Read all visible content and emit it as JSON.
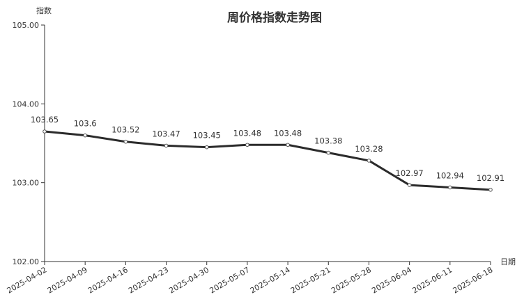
{
  "chart_data": {
    "type": "line",
    "title": "周价格指数走势图",
    "ylabel": "指数",
    "xlabel": "日期",
    "ylim": [
      102.0,
      105.0
    ],
    "yticks": [
      "102.00",
      "103.00",
      "104.00",
      "105.00"
    ],
    "grid": false,
    "categories": [
      "2025-04-02",
      "2025-04-09",
      "2025-04-16",
      "2025-04-23",
      "2025-04-30",
      "2025-05-07",
      "2025-05-14",
      "2025-05-21",
      "2025-05-28",
      "2025-06-04",
      "2025-06-11",
      "2025-06-18"
    ],
    "values": [
      103.65,
      103.6,
      103.52,
      103.47,
      103.45,
      103.48,
      103.48,
      103.38,
      103.28,
      102.97,
      102.94,
      102.91
    ],
    "value_labels": [
      "103.65",
      "103.6",
      "103.52",
      "103.47",
      "103.45",
      "103.48",
      "103.48",
      "103.38",
      "103.28",
      "102.97",
      "102.94",
      "102.91"
    ],
    "line_color": "#2b2b2b"
  }
}
